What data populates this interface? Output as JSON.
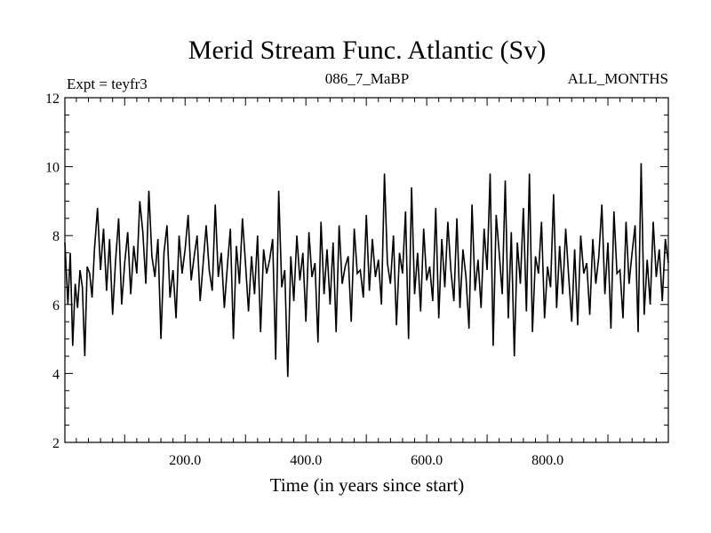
{
  "chart_data": {
    "type": "line",
    "title": "Merid Stream Func. Atlantic (Sv)",
    "subtitle_left": "Expt = teyfr3",
    "subtitle_center": "086_7_MaBP",
    "subtitle_right": "ALL_MONTHS",
    "xlabel": "Time (in years since start)",
    "ylabel": "",
    "xlim": [
      1,
      1000
    ],
    "ylim": [
      2,
      12
    ],
    "xticks": [
      200,
      400,
      600,
      800
    ],
    "xtick_labels": [
      "200.0",
      "400.0",
      "600.0",
      "800.0"
    ],
    "yticks": [
      2,
      4,
      6,
      8,
      10,
      12
    ],
    "ytick_labels": [
      "2",
      "4",
      "6",
      "8",
      "10",
      "12"
    ],
    "grid": false,
    "line_color": "#000000",
    "series": [
      {
        "name": "Merid Stream Func. Atlantic",
        "x": [
          1,
          6,
          10,
          14,
          18,
          22,
          26,
          30,
          34,
          38,
          42,
          46,
          50,
          55,
          60,
          65,
          70,
          75,
          80,
          85,
          90,
          95,
          100,
          105,
          110,
          115,
          120,
          125,
          130,
          135,
          140,
          145,
          150,
          155,
          160,
          165,
          170,
          175,
          180,
          185,
          190,
          195,
          200,
          205,
          210,
          215,
          220,
          225,
          230,
          235,
          240,
          245,
          250,
          255,
          260,
          265,
          270,
          275,
          280,
          285,
          290,
          295,
          300,
          305,
          310,
          315,
          320,
          325,
          330,
          335,
          340,
          345,
          350,
          355,
          360,
          365,
          370,
          375,
          380,
          385,
          390,
          395,
          400,
          405,
          410,
          415,
          420,
          425,
          430,
          435,
          440,
          445,
          450,
          455,
          460,
          465,
          470,
          475,
          480,
          485,
          490,
          495,
          500,
          505,
          510,
          515,
          520,
          525,
          530,
          535,
          540,
          545,
          550,
          555,
          560,
          565,
          570,
          575,
          580,
          585,
          590,
          595,
          600,
          605,
          610,
          615,
          620,
          625,
          630,
          635,
          640,
          645,
          650,
          655,
          660,
          665,
          670,
          675,
          680,
          685,
          690,
          695,
          700,
          705,
          710,
          715,
          720,
          725,
          730,
          735,
          740,
          745,
          750,
          755,
          760,
          765,
          770,
          775,
          780,
          785,
          790,
          795,
          800,
          805,
          810,
          815,
          820,
          825,
          830,
          835,
          840,
          845,
          850,
          855,
          860,
          865,
          870,
          875,
          880,
          885,
          890,
          895,
          900,
          905,
          910,
          915,
          920,
          925,
          930,
          935,
          940,
          945,
          950,
          955,
          960,
          965,
          970,
          975,
          980,
          985,
          990,
          995,
          1000
        ],
        "values": [
          7.8,
          6.0,
          7.5,
          4.8,
          6.6,
          5.9,
          7.0,
          6.5,
          4.5,
          7.1,
          6.9,
          6.2,
          7.6,
          8.8,
          7.0,
          8.2,
          6.4,
          7.9,
          5.7,
          7.3,
          8.5,
          6.0,
          7.2,
          8.1,
          6.3,
          7.7,
          6.9,
          9.0,
          8.1,
          6.6,
          9.3,
          7.4,
          6.8,
          7.9,
          5.0,
          7.5,
          8.3,
          6.2,
          7.0,
          5.6,
          8.0,
          6.9,
          7.6,
          8.6,
          6.7,
          7.4,
          8.0,
          6.1,
          7.2,
          8.3,
          7.0,
          6.4,
          8.9,
          6.8,
          7.5,
          5.9,
          7.1,
          8.2,
          5.0,
          7.7,
          6.6,
          8.5,
          7.2,
          5.8,
          7.4,
          6.3,
          8.0,
          5.2,
          7.6,
          6.9,
          7.3,
          7.9,
          4.4,
          9.3,
          6.5,
          7.0,
          3.9,
          7.4,
          6.1,
          8.0,
          6.7,
          7.5,
          5.5,
          8.1,
          6.8,
          7.2,
          4.9,
          8.4,
          6.3,
          7.6,
          6.0,
          7.8,
          5.2,
          8.3,
          6.6,
          7.1,
          7.4,
          5.5,
          8.2,
          6.9,
          7.0,
          6.2,
          8.6,
          6.4,
          7.9,
          6.8,
          7.3,
          6.0,
          9.8,
          7.2,
          6.6,
          8.0,
          5.4,
          7.5,
          6.9,
          8.7,
          5.0,
          9.4,
          6.3,
          7.5,
          5.8,
          8.2,
          6.7,
          7.1,
          6.1,
          8.8,
          5.6,
          7.9,
          6.5,
          8.4,
          7.0,
          6.1,
          8.5,
          5.9,
          7.6,
          6.8,
          5.3,
          8.9,
          6.4,
          7.3,
          5.9,
          8.2,
          7.0,
          9.8,
          4.8,
          8.6,
          7.5,
          6.3,
          9.6,
          5.6,
          8.1,
          4.5,
          7.8,
          6.6,
          8.8,
          5.8,
          9.8,
          5.2,
          7.4,
          6.9,
          8.4,
          5.6,
          7.1,
          6.5,
          9.2,
          5.9,
          7.7,
          6.3,
          8.2,
          6.8,
          5.5,
          7.6,
          5.4,
          8.0,
          6.9,
          7.2,
          5.7,
          7.9,
          6.6,
          7.4,
          8.9,
          6.3,
          7.8,
          5.3,
          8.7,
          6.9,
          7.0,
          5.6,
          8.4,
          6.6,
          7.5,
          8.3,
          5.2,
          10.1,
          5.7,
          7.3,
          6.0,
          8.4,
          6.8,
          7.6,
          6.1,
          7.9,
          7.2
        ]
      }
    ]
  }
}
